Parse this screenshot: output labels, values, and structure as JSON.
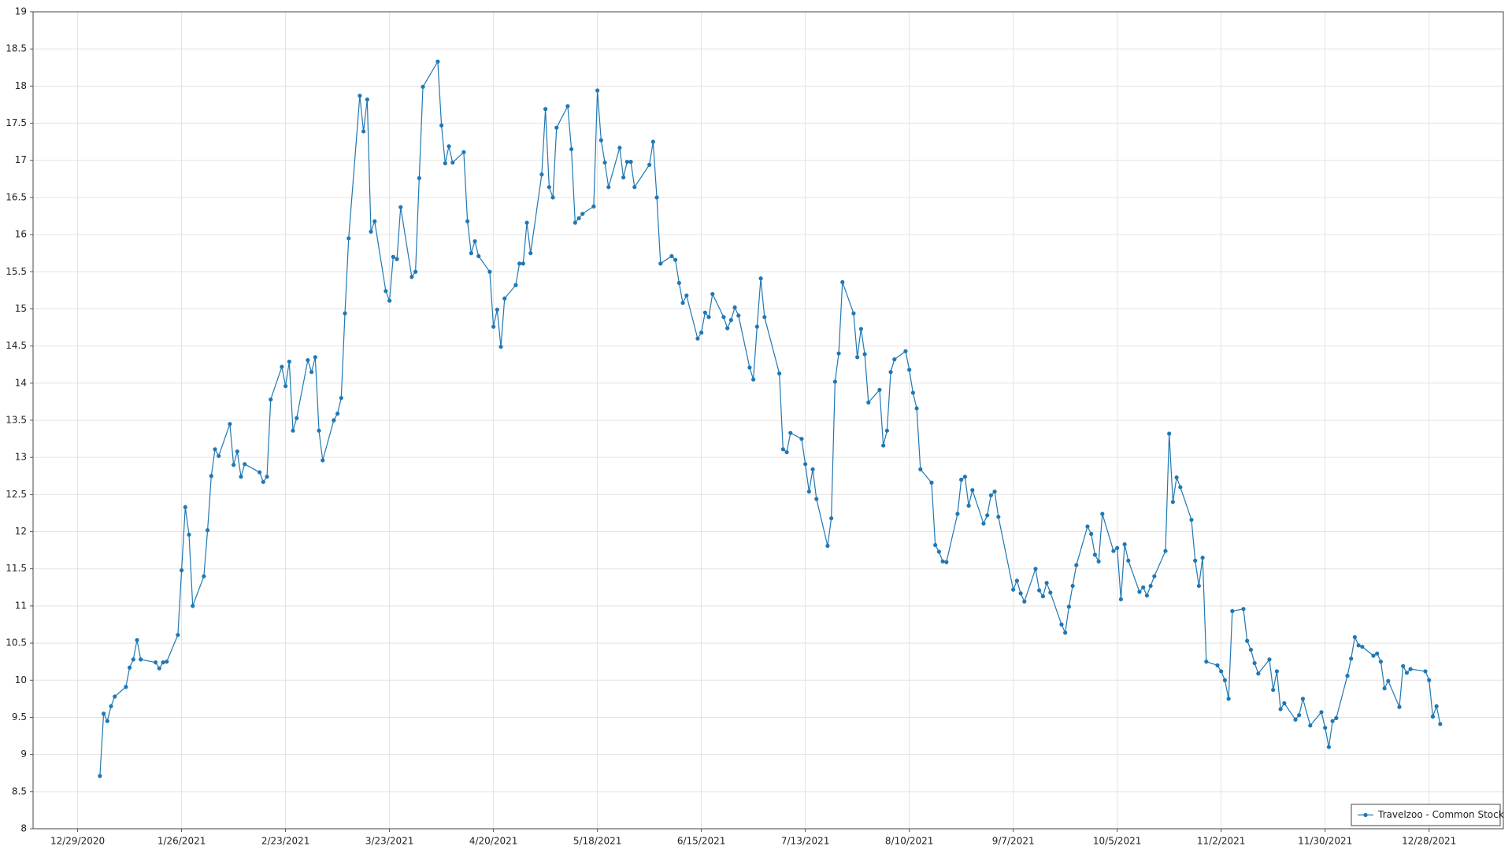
{
  "chart_data": {
    "type": "line",
    "x": [
      "1/4/2021",
      "1/5/2021",
      "1/6/2021",
      "1/7/2021",
      "1/8/2021",
      "1/11/2021",
      "1/12/2021",
      "1/13/2021",
      "1/14/2021",
      "1/15/2021",
      "1/19/2021",
      "1/20/2021",
      "1/21/2021",
      "1/22/2021",
      "1/25/2021",
      "1/26/2021",
      "1/27/2021",
      "1/28/2021",
      "1/29/2021",
      "2/1/2021",
      "2/2/2021",
      "2/3/2021",
      "2/4/2021",
      "2/5/2021",
      "2/8/2021",
      "2/9/2021",
      "2/10/2021",
      "2/11/2021",
      "2/12/2021",
      "2/16/2021",
      "2/17/2021",
      "2/18/2021",
      "2/19/2021",
      "2/22/2021",
      "2/23/2021",
      "2/24/2021",
      "2/25/2021",
      "2/26/2021",
      "3/1/2021",
      "3/2/2021",
      "3/3/2021",
      "3/4/2021",
      "3/5/2021",
      "3/8/2021",
      "3/9/2021",
      "3/10/2021",
      "3/11/2021",
      "3/12/2021",
      "3/15/2021",
      "3/16/2021",
      "3/17/2021",
      "3/18/2021",
      "3/19/2021",
      "3/22/2021",
      "3/23/2021",
      "3/24/2021",
      "3/25/2021",
      "3/26/2021",
      "3/29/2021",
      "3/30/2021",
      "3/31/2021",
      "4/1/2021",
      "4/5/2021",
      "4/6/2021",
      "4/7/2021",
      "4/8/2021",
      "4/9/2021",
      "4/12/2021",
      "4/13/2021",
      "4/14/2021",
      "4/15/2021",
      "4/16/2021",
      "4/19/2021",
      "4/20/2021",
      "4/21/2021",
      "4/22/2021",
      "4/23/2021",
      "4/26/2021",
      "4/27/2021",
      "4/28/2021",
      "4/29/2021",
      "4/30/2021",
      "5/3/2021",
      "5/4/2021",
      "5/5/2021",
      "5/6/2021",
      "5/7/2021",
      "5/10/2021",
      "5/11/2021",
      "5/12/2021",
      "5/13/2021",
      "5/14/2021",
      "5/17/2021",
      "5/18/2021",
      "5/19/2021",
      "5/20/2021",
      "5/21/2021",
      "5/24/2021",
      "5/25/2021",
      "5/26/2021",
      "5/27/2021",
      "5/28/2021",
      "6/1/2021",
      "6/2/2021",
      "6/3/2021",
      "6/4/2021",
      "6/7/2021",
      "6/8/2021",
      "6/9/2021",
      "6/10/2021",
      "6/11/2021",
      "6/14/2021",
      "6/15/2021",
      "6/16/2021",
      "6/17/2021",
      "6/18/2021",
      "6/21/2021",
      "6/22/2021",
      "6/23/2021",
      "6/24/2021",
      "6/25/2021",
      "6/28/2021",
      "6/29/2021",
      "6/30/2021",
      "7/1/2021",
      "7/2/2021",
      "7/6/2021",
      "7/7/2021",
      "7/8/2021",
      "7/9/2021",
      "7/12/2021",
      "7/13/2021",
      "7/14/2021",
      "7/15/2021",
      "7/16/2021",
      "7/19/2021",
      "7/20/2021",
      "7/21/2021",
      "7/22/2021",
      "7/23/2021",
      "7/26/2021",
      "7/27/2021",
      "7/28/2021",
      "7/29/2021",
      "7/30/2021",
      "8/2/2021",
      "8/3/2021",
      "8/4/2021",
      "8/5/2021",
      "8/6/2021",
      "8/9/2021",
      "8/10/2021",
      "8/11/2021",
      "8/12/2021",
      "8/13/2021",
      "8/16/2021",
      "8/17/2021",
      "8/18/2021",
      "8/19/2021",
      "8/20/2021",
      "8/23/2021",
      "8/24/2021",
      "8/25/2021",
      "8/26/2021",
      "8/27/2021",
      "8/30/2021",
      "8/31/2021",
      "9/1/2021",
      "9/2/2021",
      "9/3/2021",
      "9/7/2021",
      "9/8/2021",
      "9/9/2021",
      "9/10/2021",
      "9/13/2021",
      "9/14/2021",
      "9/15/2021",
      "9/16/2021",
      "9/17/2021",
      "9/20/2021",
      "9/21/2021",
      "9/22/2021",
      "9/23/2021",
      "9/24/2021",
      "9/27/2021",
      "9/28/2021",
      "9/29/2021",
      "9/30/2021",
      "10/1/2021",
      "10/4/2021",
      "10/5/2021",
      "10/6/2021",
      "10/7/2021",
      "10/8/2021",
      "10/11/2021",
      "10/12/2021",
      "10/13/2021",
      "10/14/2021",
      "10/15/2021",
      "10/18/2021",
      "10/19/2021",
      "10/20/2021",
      "10/21/2021",
      "10/22/2021",
      "10/25/2021",
      "10/26/2021",
      "10/27/2021",
      "10/28/2021",
      "10/29/2021",
      "11/1/2021",
      "11/2/2021",
      "11/3/2021",
      "11/4/2021",
      "11/5/2021",
      "11/8/2021",
      "11/9/2021",
      "11/10/2021",
      "11/11/2021",
      "11/12/2021",
      "11/15/2021",
      "11/16/2021",
      "11/17/2021",
      "11/18/2021",
      "11/19/2021",
      "11/22/2021",
      "11/23/2021",
      "11/24/2021",
      "11/26/2021",
      "11/29/2021",
      "11/30/2021",
      "12/1/2021",
      "12/2/2021",
      "12/3/2021",
      "12/6/2021",
      "12/7/2021",
      "12/8/2021",
      "12/9/2021",
      "12/10/2021",
      "12/13/2021",
      "12/14/2021",
      "12/15/2021",
      "12/16/2021",
      "12/17/2021",
      "12/20/2021",
      "12/21/2021",
      "12/22/2021",
      "12/23/2021",
      "12/27/2021",
      "12/28/2021",
      "12/29/2021",
      "12/30/2021",
      "12/31/2021"
    ],
    "series": [
      {
        "name": "Travelzoo - Common Stock",
        "color": "#1f78b4",
        "values": [
          8.71,
          9.55,
          9.45,
          9.65,
          9.78,
          9.91,
          10.17,
          10.28,
          10.54,
          10.28,
          10.24,
          10.16,
          10.24,
          10.25,
          10.61,
          11.48,
          12.33,
          11.96,
          11.0,
          11.4,
          12.02,
          12.75,
          13.11,
          13.02,
          13.45,
          12.9,
          13.08,
          12.74,
          12.91,
          12.8,
          12.67,
          12.74,
          13.78,
          14.22,
          13.96,
          14.29,
          13.36,
          13.53,
          14.31,
          14.15,
          14.35,
          13.36,
          12.96,
          13.5,
          13.59,
          13.8,
          14.94,
          15.95,
          17.87,
          17.39,
          17.82,
          16.04,
          16.18,
          15.24,
          15.11,
          15.7,
          15.67,
          16.37,
          15.43,
          15.5,
          16.76,
          17.99,
          18.33,
          17.47,
          16.96,
          17.19,
          16.97,
          17.11,
          16.18,
          15.75,
          15.91,
          15.71,
          15.5,
          14.76,
          14.99,
          14.49,
          15.14,
          15.32,
          15.61,
          15.61,
          16.16,
          15.75,
          16.81,
          17.69,
          16.64,
          16.5,
          17.44,
          17.73,
          17.15,
          16.16,
          16.22,
          16.28,
          16.38,
          17.94,
          17.27,
          16.97,
          16.64,
          17.17,
          16.77,
          16.98,
          16.98,
          16.64,
          16.94,
          17.25,
          16.5,
          15.61,
          15.71,
          15.66,
          15.35,
          15.08,
          15.18,
          14.6,
          14.68,
          14.95,
          14.89,
          15.2,
          14.89,
          14.74,
          14.85,
          15.02,
          14.91,
          14.21,
          14.05,
          14.76,
          15.41,
          14.89,
          14.13,
          13.11,
          13.07,
          13.33,
          13.25,
          12.91,
          12.54,
          12.84,
          12.44,
          11.81,
          12.18,
          14.02,
          14.4,
          15.36,
          14.94,
          14.35,
          14.73,
          14.39,
          13.74,
          13.91,
          13.16,
          13.36,
          14.15,
          14.32,
          14.43,
          14.18,
          13.87,
          13.66,
          12.84,
          12.66,
          11.82,
          11.73,
          11.6,
          11.59,
          12.24,
          12.7,
          12.74,
          12.35,
          12.56,
          12.11,
          12.22,
          12.49,
          12.54,
          12.2,
          11.22,
          11.34,
          11.17,
          11.06,
          11.5,
          11.21,
          11.13,
          11.31,
          11.18,
          10.75,
          10.64,
          10.99,
          11.27,
          11.55,
          12.07,
          11.97,
          11.69,
          11.6,
          12.24,
          11.74,
          11.78,
          11.09,
          11.83,
          11.61,
          11.19,
          11.25,
          11.14,
          11.27,
          11.4,
          11.74,
          13.32,
          12.4,
          12.73,
          12.6,
          12.16,
          11.61,
          11.27,
          11.65,
          10.25,
          10.2,
          10.12,
          10.0,
          9.75,
          10.93,
          10.96,
          10.53,
          10.41,
          10.23,
          10.09,
          10.28,
          9.87,
          10.12,
          9.61,
          9.69,
          9.47,
          9.53,
          9.75,
          9.39,
          9.57,
          9.36,
          9.1,
          9.45,
          9.49,
          10.06,
          10.29,
          10.58,
          10.47,
          10.45,
          10.33,
          10.36,
          10.25,
          9.89,
          9.99,
          9.64,
          10.19,
          10.1,
          10.15,
          10.12,
          10.0,
          9.51,
          9.65,
          9.41
        ]
      }
    ],
    "xlim": [
      "12/17/2020",
      "1/17/2022"
    ],
    "xticks": [
      "12/29/2020",
      "1/26/2021",
      "2/23/2021",
      "3/23/2021",
      "4/20/2021",
      "5/18/2021",
      "6/15/2021",
      "7/13/2021",
      "8/10/2021",
      "9/7/2021",
      "10/5/2021",
      "11/2/2021",
      "11/30/2021",
      "12/28/2021"
    ],
    "ylim": [
      8,
      19
    ],
    "yticks": [
      8,
      8.5,
      9,
      9.5,
      10,
      10.5,
      11,
      11.5,
      12,
      12.5,
      13,
      13.5,
      14,
      14.5,
      15,
      15.5,
      16,
      16.5,
      17,
      17.5,
      18,
      18.5,
      19
    ],
    "grid": true,
    "legend": "lower right"
  }
}
